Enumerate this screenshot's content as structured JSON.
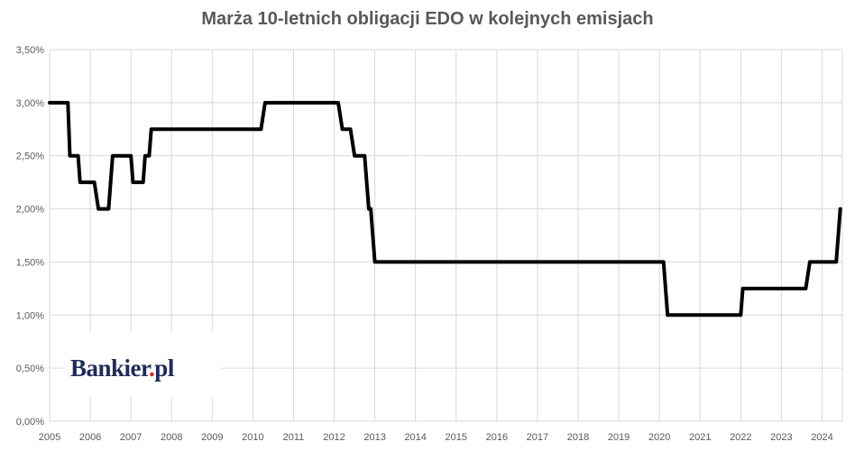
{
  "chart_data": {
    "type": "line",
    "title": "Marża 10-letnich obligacji EDO w kolejnych emisjach",
    "xlabel": "",
    "ylabel": "",
    "ylim": [
      0,
      3.5
    ],
    "xlim": [
      2005,
      2024.5
    ],
    "y_ticks": [
      "0,00%",
      "0,50%",
      "1,00%",
      "1,50%",
      "2,00%",
      "2,50%",
      "3,00%",
      "3,50%"
    ],
    "x_ticks": [
      "2005",
      "2006",
      "2007",
      "2008",
      "2009",
      "2010",
      "2011",
      "2012",
      "2013",
      "2014",
      "2015",
      "2016",
      "2017",
      "2018",
      "2019",
      "2020",
      "2021",
      "2022",
      "2023",
      "2024"
    ],
    "grid": true,
    "series": [
      {
        "color": "#000000",
        "points": [
          [
            2005.0,
            3.0
          ],
          [
            2005.45,
            3.0
          ],
          [
            2005.5,
            2.5
          ],
          [
            2005.7,
            2.5
          ],
          [
            2005.75,
            2.25
          ],
          [
            2006.1,
            2.25
          ],
          [
            2006.2,
            2.0
          ],
          [
            2006.45,
            2.0
          ],
          [
            2006.55,
            2.5
          ],
          [
            2007.0,
            2.5
          ],
          [
            2007.05,
            2.25
          ],
          [
            2007.3,
            2.25
          ],
          [
            2007.35,
            2.5
          ],
          [
            2007.45,
            2.5
          ],
          [
            2007.5,
            2.75
          ],
          [
            2010.2,
            2.75
          ],
          [
            2010.3,
            3.0
          ],
          [
            2012.1,
            3.0
          ],
          [
            2012.2,
            2.75
          ],
          [
            2012.4,
            2.75
          ],
          [
            2012.5,
            2.5
          ],
          [
            2012.75,
            2.5
          ],
          [
            2012.85,
            2.0
          ],
          [
            2012.9,
            2.0
          ],
          [
            2013.0,
            1.5
          ],
          [
            2020.1,
            1.5
          ],
          [
            2020.2,
            1.0
          ],
          [
            2022.0,
            1.0
          ],
          [
            2022.05,
            1.25
          ],
          [
            2023.6,
            1.25
          ],
          [
            2023.7,
            1.5
          ],
          [
            2024.35,
            1.5
          ],
          [
            2024.45,
            2.0
          ]
        ]
      }
    ]
  },
  "logo": {
    "text_main": "Bankier",
    "text_dot": ".",
    "text_suffix": "pl"
  }
}
